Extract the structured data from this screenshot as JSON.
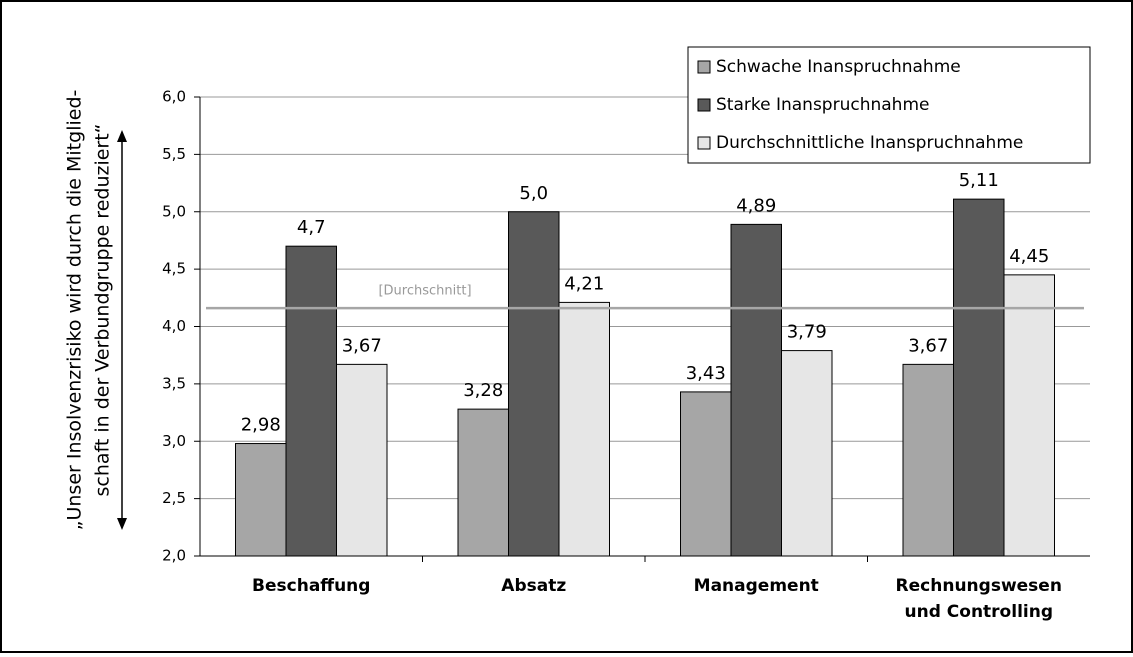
{
  "chart_data": {
    "type": "bar",
    "y_label": [
      "„Unser Insolvenzrisiko wird durch die Mitglied-",
      "schaft in der Verbundgruppe reduziert“"
    ],
    "categories": [
      "Beschaffung",
      "Absatz",
      "Management",
      [
        "Rechnungswesen",
        "und Controlling"
      ]
    ],
    "series": [
      {
        "name": "Schwache Inanspruchnahme",
        "color": "#a6a6a6",
        "values": [
          2.98,
          3.28,
          3.43,
          3.67
        ],
        "value_labels": [
          "2,98",
          "3,28",
          "3,43",
          "3,67"
        ]
      },
      {
        "name": "Starke Inanspruchnahme",
        "color": "#595959",
        "values": [
          4.7,
          5.0,
          4.89,
          5.11
        ],
        "value_labels": [
          "4,7",
          "5,0",
          "4,89",
          "5,11"
        ]
      },
      {
        "name": "Durchschnittliche Inanspruchnahme",
        "color": "#e6e6e6",
        "values": [
          3.67,
          4.21,
          3.79,
          4.45
        ],
        "value_labels": [
          "3,67",
          "4,21",
          "3,79",
          "4,45"
        ]
      }
    ],
    "reference_line": {
      "label": "[Durchschnitt]",
      "value": 4.16,
      "color": "#a6a6a6"
    },
    "ylim": [
      2.0,
      6.0
    ],
    "yticks": [
      {
        "value": 2.0,
        "label": "2,0"
      },
      {
        "value": 2.5,
        "label": "2,5"
      },
      {
        "value": 3.0,
        "label": "3,0"
      },
      {
        "value": 3.5,
        "label": "3,5"
      },
      {
        "value": 4.0,
        "label": "4,0"
      },
      {
        "value": 4.5,
        "label": "4,5"
      },
      {
        "value": 5.0,
        "label": "5,0"
      },
      {
        "value": 5.5,
        "label": "5,5"
      },
      {
        "value": 6.0,
        "label": "6,0"
      }
    ],
    "grid": true,
    "legend": "upper right"
  }
}
